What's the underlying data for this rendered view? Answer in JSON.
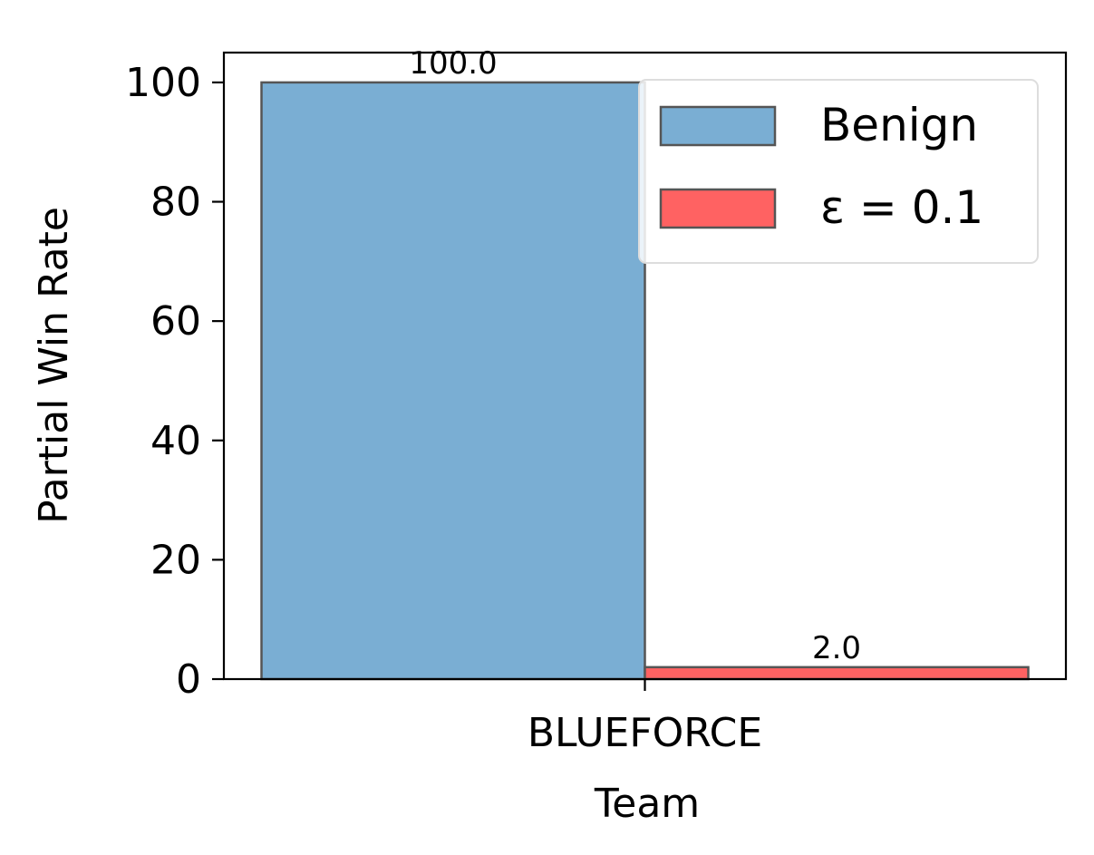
{
  "chart_data": {
    "type": "bar",
    "categories": [
      "BLUEFORCE"
    ],
    "series": [
      {
        "name": "Benign",
        "values": [
          100.0
        ],
        "data_labels": [
          "100.0"
        ],
        "color": "#7aaed3"
      },
      {
        "name": "ε = 0.1",
        "values": [
          2.0
        ],
        "data_labels": [
          "2.0"
        ],
        "color": "#ff6262"
      }
    ],
    "xlabel": "Team",
    "ylabel": "Partial Win Rate",
    "ylim": [
      0,
      105
    ],
    "yticks": [
      0,
      20,
      40,
      60,
      80,
      100
    ],
    "ytick_labels": [
      "0",
      "20",
      "40",
      "60",
      "80",
      "100"
    ],
    "grid": false,
    "legend_position": "top-right",
    "bar_edge_color": "#555555"
  }
}
